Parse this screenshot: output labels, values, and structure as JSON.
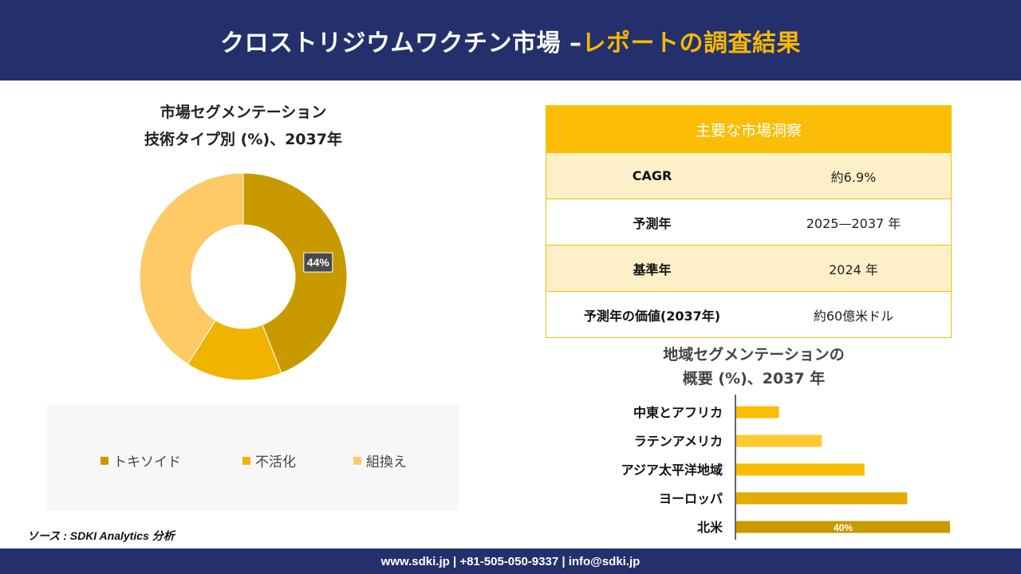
{
  "header": {
    "title_main": "クロストリジウムワクチン市場 –",
    "title_accent": "レポートの調査結果"
  },
  "footer": {
    "contact": "www.sdki.jp | +81-505-050-9337 | info@sdki.jp"
  },
  "source": "ソース : SDKI Analytics 分析",
  "colors": {
    "header_bg": "#24306c",
    "accent": "#f5b800",
    "table_head": "#fbbd06",
    "table_alt": "#fdf0c8"
  },
  "insights": {
    "title": "主要な市場洞察",
    "rows": [
      {
        "label": "CAGR",
        "value": "約6.9%"
      },
      {
        "label": "予測年",
        "value": "2025—2037 年"
      },
      {
        "label": "基準年",
        "value": "2024 年"
      },
      {
        "label": "予測年の価値(2037年)",
        "value": "約60億米ドル"
      }
    ]
  },
  "chart_data": [
    {
      "type": "pie",
      "title_line1": "市場セグメンテーション",
      "title_line2": "技術タイプ別 (%)、2037年",
      "categories": [
        "トキソイド",
        "不活化",
        "組換え"
      ],
      "values": [
        44,
        15,
        41
      ],
      "colors": [
        "#c89a00",
        "#f0b400",
        "#fdca66"
      ],
      "data_labels": [
        "44%",
        "",
        ""
      ],
      "legend": "bottom"
    },
    {
      "type": "bar",
      "orientation": "horizontal",
      "title_line1": "地域セグメンテーションの",
      "title_line2": "概要 (%)、2037 年",
      "categories": [
        "中東とアフリカ",
        "ラテンアメリカ",
        "アジア太平洋地域",
        "ヨーロッパ",
        "北米"
      ],
      "values": [
        8,
        16,
        24,
        32,
        40
      ],
      "colors": [
        "#fbbd06",
        "#fdca30",
        "#f8bd00",
        "#e3ac00",
        "#c89a00"
      ],
      "data_labels": [
        "",
        "",
        "",
        "",
        "40%"
      ],
      "xlim": [
        0,
        40
      ]
    }
  ]
}
